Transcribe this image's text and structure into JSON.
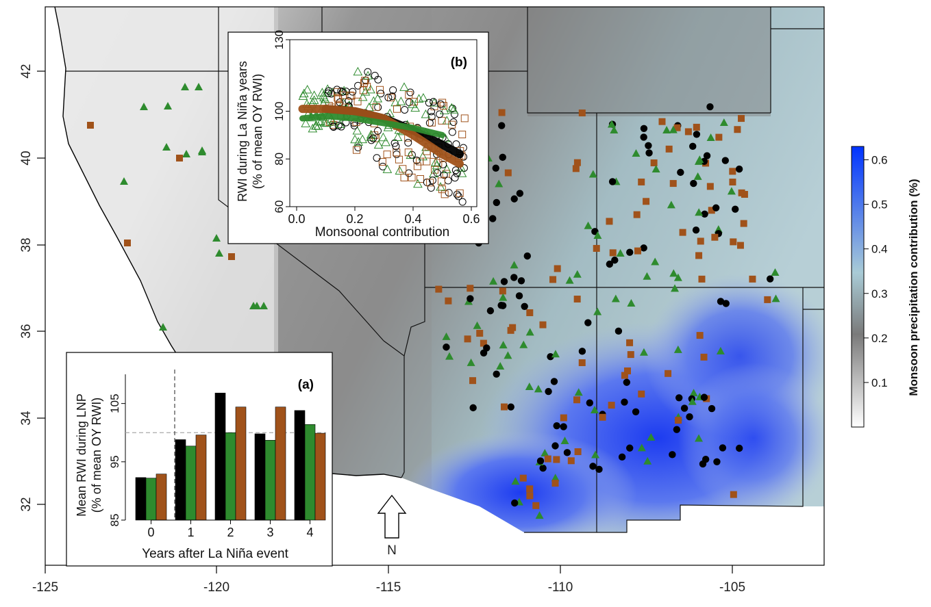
{
  "map": {
    "x_ticks": [
      "-125",
      "-120",
      "-115",
      "-110",
      "-105"
    ],
    "y_ticks": [
      "32",
      "34",
      "36",
      "38",
      "40",
      "42"
    ],
    "north_label": "N",
    "series_colors": {
      "black": "#000000",
      "green": "#2e8b2e",
      "brown": "#a0521a"
    }
  },
  "colorbar": {
    "title": "Monsoon precipitation contribution (%)",
    "ticks": [
      "0.1",
      "0.2",
      "0.3",
      "0.4",
      "0.5",
      "0.6"
    ],
    "colors": [
      "#ffffff",
      "#7a7a7a",
      "#a9cbd6",
      "#0033ff"
    ]
  },
  "inset_a": {
    "panel_label": "(a)",
    "ylabel_line1": "Mean RWI during LNP",
    "ylabel_line2": "(% of mean OY RWI)",
    "xlabel": "Years after La Niña event",
    "y_ticks": [
      "85",
      "95",
      "105"
    ],
    "x_ticks": [
      "0",
      "1",
      "2",
      "3",
      "4"
    ]
  },
  "inset_b": {
    "panel_label": "(b)",
    "ylabel_line1": "RWI during La Niña years",
    "ylabel_line2": "(% of mean OY RWI)",
    "xlabel": "Monsoonal contribution",
    "y_ticks": [
      "60",
      "80",
      "100",
      "130"
    ],
    "x_ticks": [
      "0.0",
      "0.2",
      "0.4",
      "0.6"
    ]
  },
  "chart_data": [
    {
      "type": "bar",
      "categories": [
        "0",
        "1",
        "2",
        "3",
        "4"
      ],
      "ylim": [
        85,
        112
      ],
      "reference_line": 100,
      "series": [
        {
          "values": [
            92.3,
            98.8,
            106.8,
            99.8,
            103.8
          ]
        },
        {
          "values": [
            92.2,
            97.7,
            100.0,
            98.7,
            101.4
          ]
        },
        {
          "values": [
            92.9,
            99.6,
            104.4,
            104.4,
            99.9
          ]
        }
      ]
    },
    {
      "type": "scatter",
      "xlim": [
        0.0,
        0.6
      ],
      "ylim": [
        60,
        130
      ],
      "series": [
        {
          "trend_x": [
            0.1,
            0.2,
            0.3,
            0.4,
            0.5,
            0.56
          ],
          "trend_y": [
            101,
            100,
            97,
            92,
            86,
            82
          ]
        },
        {
          "trend_x": [
            0.02,
            0.1,
            0.2,
            0.3,
            0.4,
            0.5,
            0.56
          ],
          "trend_y": [
            101,
            101,
            100,
            97,
            90,
            82,
            78
          ]
        },
        {
          "trend_x": [
            0.02,
            0.1,
            0.2,
            0.3,
            0.4,
            0.5
          ],
          "trend_y": [
            97,
            98,
            97,
            95,
            93,
            90
          ]
        }
      ]
    }
  ]
}
